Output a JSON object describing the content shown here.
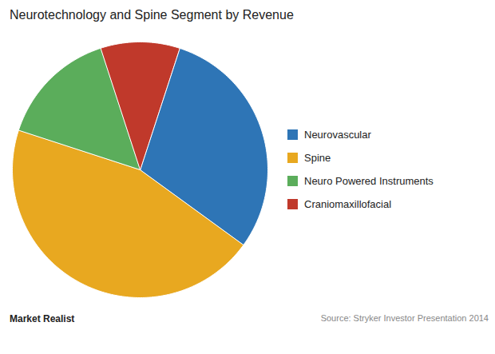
{
  "chart_data": {
    "type": "pie",
    "title": "Neurotechnology and Spine Segment by Revenue",
    "categories": [
      "Neurovascular",
      "Spine",
      "Neuro Powered Instruments",
      "Craniomaxillofacial"
    ],
    "values": [
      30,
      45,
      15,
      10
    ],
    "colors": [
      "#2E75B6",
      "#E8A820",
      "#5BAD5B",
      "#C0392B"
    ],
    "legend": "right",
    "annotations": [
      "Market Realist",
      "Source: Stryker Investor Presentation 2014"
    ]
  }
}
